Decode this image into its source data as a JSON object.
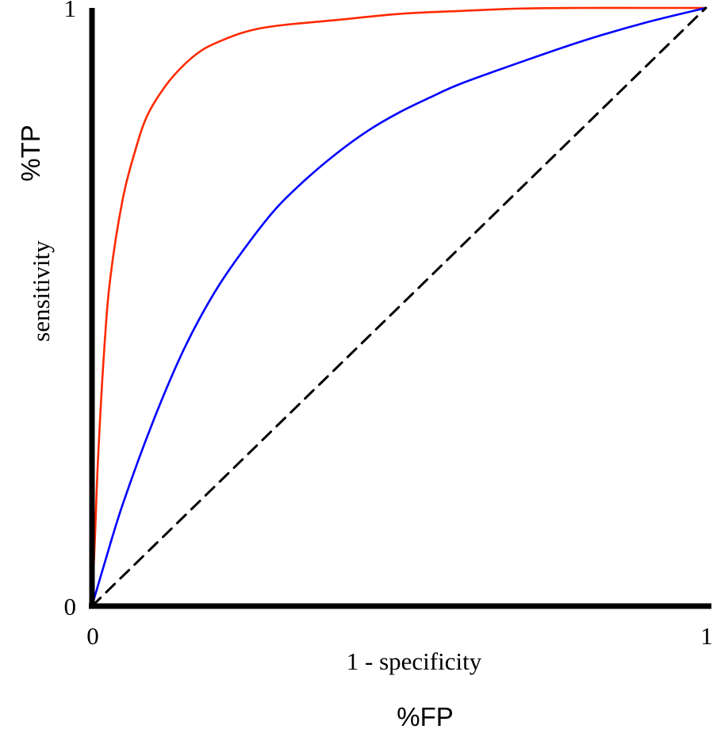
{
  "chart_data": {
    "type": "line",
    "title": "",
    "xlabel": "1 - specificity",
    "ylabel": "sensitivity",
    "xlabel_extra": "%FP",
    "ylabel_extra": "%TP",
    "xlim": [
      0,
      1
    ],
    "ylim": [
      0,
      1
    ],
    "x_ticks": [
      {
        "value": 0,
        "label": "0"
      },
      {
        "value": 1,
        "label": "1"
      }
    ],
    "y_ticks": [
      {
        "value": 0,
        "label": "0"
      },
      {
        "value": 1,
        "label": "1"
      }
    ],
    "grid": false,
    "legend": "none",
    "series": [
      {
        "color": "#ff2a00",
        "style": "solid",
        "x": [
          0,
          0.005,
          0.01,
          0.02,
          0.03,
          0.05,
          0.07,
          0.09,
          0.12,
          0.15,
          0.18,
          0.21,
          0.25,
          0.3,
          0.4,
          0.5,
          0.6,
          0.7,
          0.8,
          0.9,
          1
        ],
        "y": [
          0,
          0.12,
          0.25,
          0.43,
          0.55,
          0.68,
          0.76,
          0.82,
          0.87,
          0.905,
          0.93,
          0.945,
          0.96,
          0.97,
          0.98,
          0.99,
          0.995,
          0.999,
          1,
          1,
          1
        ]
      },
      {
        "color": "#0000ff",
        "style": "solid",
        "x": [
          0,
          0.02,
          0.05,
          0.1,
          0.15,
          0.2,
          0.25,
          0.3,
          0.35,
          0.4,
          0.45,
          0.5,
          0.55,
          0.6,
          0.7,
          0.8,
          0.9,
          1
        ],
        "y": [
          0,
          0.07,
          0.17,
          0.31,
          0.43,
          0.525,
          0.6,
          0.665,
          0.715,
          0.758,
          0.795,
          0.825,
          0.85,
          0.873,
          0.91,
          0.945,
          0.975,
          1
        ]
      },
      {
        "color": "#000000",
        "style": "dashed",
        "x": [
          0,
          1
        ],
        "y": [
          0,
          1
        ]
      }
    ]
  },
  "colors": {
    "axis": "#000000",
    "background": "#ffffff"
  }
}
